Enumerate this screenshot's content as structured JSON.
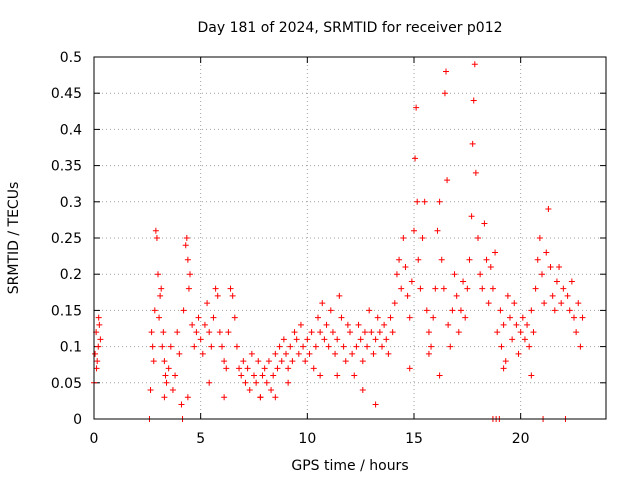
{
  "chart_data": {
    "type": "scatter",
    "title": "Day 181 of 2024, SRMTID for receiver p012",
    "xlabel": "GPS time / hours",
    "ylabel": "SRMTID / TECUs",
    "xlim": [
      0,
      24
    ],
    "ylim": [
      0,
      0.5
    ],
    "x_ticks": [
      0,
      5,
      10,
      15,
      20
    ],
    "x_tick_labels": [
      "0",
      "5",
      "10",
      "15",
      "20"
    ],
    "y_ticks": [
      0,
      0.05,
      0.1,
      0.15,
      0.2,
      0.25,
      0.3,
      0.35,
      0.4,
      0.45,
      0.5
    ],
    "y_tick_labels": [
      "0",
      "0.05",
      "0.1",
      "0.15",
      "0.2",
      "0.25",
      "0.3",
      "0.35",
      "0.4",
      "0.45",
      "0.5"
    ],
    "grid": true,
    "marker": "+",
    "marker_color": "#ff0000",
    "series": [
      {
        "name": "SRMTID",
        "points": [
          [
            0.0,
            0.05
          ],
          [
            0.05,
            0.09
          ],
          [
            0.1,
            0.12
          ],
          [
            0.15,
            0.08
          ],
          [
            0.2,
            0.1
          ],
          [
            0.25,
            0.13
          ],
          [
            0.3,
            0.11
          ],
          [
            0.12,
            0.07
          ],
          [
            0.22,
            0.14
          ],
          [
            2.6,
            0.0
          ],
          [
            2.65,
            0.04
          ],
          [
            2.7,
            0.12
          ],
          [
            2.75,
            0.1
          ],
          [
            2.8,
            0.08
          ],
          [
            2.85,
            0.15
          ],
          [
            2.9,
            0.26
          ],
          [
            2.95,
            0.25
          ],
          [
            3.0,
            0.2
          ],
          [
            3.05,
            0.14
          ],
          [
            3.1,
            0.17
          ],
          [
            3.15,
            0.18
          ],
          [
            3.2,
            0.1
          ],
          [
            3.25,
            0.12
          ],
          [
            3.3,
            0.08
          ],
          [
            3.35,
            0.06
          ],
          [
            3.4,
            0.05
          ],
          [
            3.5,
            0.07
          ],
          [
            3.6,
            0.1
          ],
          [
            3.7,
            0.04
          ],
          [
            3.8,
            0.06
          ],
          [
            3.9,
            0.12
          ],
          [
            4.0,
            0.09
          ],
          [
            4.1,
            0.02
          ],
          [
            4.15,
            0.0
          ],
          [
            4.2,
            0.15
          ],
          [
            4.3,
            0.24
          ],
          [
            4.35,
            0.25
          ],
          [
            4.4,
            0.22
          ],
          [
            4.45,
            0.18
          ],
          [
            4.5,
            0.2
          ],
          [
            4.6,
            0.13
          ],
          [
            4.7,
            0.1
          ],
          [
            4.8,
            0.12
          ],
          [
            4.9,
            0.14
          ],
          [
            5.0,
            0.11
          ],
          [
            5.1,
            0.09
          ],
          [
            5.2,
            0.13
          ],
          [
            5.3,
            0.16
          ],
          [
            5.4,
            0.12
          ],
          [
            5.5,
            0.1
          ],
          [
            5.6,
            0.14
          ],
          [
            5.7,
            0.18
          ],
          [
            5.8,
            0.17
          ],
          [
            5.9,
            0.12
          ],
          [
            6.0,
            0.1
          ],
          [
            6.1,
            0.08
          ],
          [
            6.2,
            0.07
          ],
          [
            6.3,
            0.12
          ],
          [
            6.4,
            0.18
          ],
          [
            6.5,
            0.17
          ],
          [
            6.6,
            0.14
          ],
          [
            6.7,
            0.1
          ],
          [
            6.8,
            0.07
          ],
          [
            6.9,
            0.06
          ],
          [
            7.0,
            0.08
          ],
          [
            7.1,
            0.05
          ],
          [
            7.2,
            0.07
          ],
          [
            7.3,
            0.04
          ],
          [
            7.4,
            0.09
          ],
          [
            7.5,
            0.06
          ],
          [
            7.6,
            0.05
          ],
          [
            7.7,
            0.08
          ],
          [
            7.8,
            0.03
          ],
          [
            7.9,
            0.06
          ],
          [
            8.0,
            0.07
          ],
          [
            8.1,
            0.05
          ],
          [
            8.2,
            0.08
          ],
          [
            8.3,
            0.04
          ],
          [
            8.4,
            0.06
          ],
          [
            8.5,
            0.09
          ],
          [
            8.6,
            0.07
          ],
          [
            8.7,
            0.1
          ],
          [
            8.8,
            0.08
          ],
          [
            8.9,
            0.11
          ],
          [
            9.0,
            0.09
          ],
          [
            9.1,
            0.07
          ],
          [
            9.2,
            0.1
          ],
          [
            9.3,
            0.08
          ],
          [
            9.4,
            0.12
          ],
          [
            9.5,
            0.11
          ],
          [
            9.6,
            0.09
          ],
          [
            9.7,
            0.13
          ],
          [
            9.8,
            0.1
          ],
          [
            9.9,
            0.08
          ],
          [
            10.0,
            0.11
          ],
          [
            10.1,
            0.09
          ],
          [
            10.2,
            0.12
          ],
          [
            10.3,
            0.07
          ],
          [
            10.4,
            0.1
          ],
          [
            10.5,
            0.14
          ],
          [
            10.6,
            0.12
          ],
          [
            10.7,
            0.16
          ],
          [
            10.8,
            0.11
          ],
          [
            10.9,
            0.13
          ],
          [
            11.0,
            0.1
          ],
          [
            11.1,
            0.15
          ],
          [
            11.2,
            0.12
          ],
          [
            11.3,
            0.09
          ],
          [
            11.4,
            0.11
          ],
          [
            11.5,
            0.17
          ],
          [
            11.6,
            0.14
          ],
          [
            11.7,
            0.1
          ],
          [
            11.8,
            0.08
          ],
          [
            11.9,
            0.13
          ],
          [
            12.0,
            0.12
          ],
          [
            12.1,
            0.09
          ],
          [
            12.2,
            0.06
          ],
          [
            12.3,
            0.1
          ],
          [
            12.4,
            0.13
          ],
          [
            12.5,
            0.11
          ],
          [
            12.6,
            0.08
          ],
          [
            12.7,
            0.12
          ],
          [
            12.8,
            0.1
          ],
          [
            12.9,
            0.15
          ],
          [
            13.0,
            0.12
          ],
          [
            13.1,
            0.09
          ],
          [
            13.2,
            0.11
          ],
          [
            13.3,
            0.14
          ],
          [
            13.4,
            0.12
          ],
          [
            13.5,
            0.1
          ],
          [
            13.6,
            0.13
          ],
          [
            13.7,
            0.11
          ],
          [
            13.8,
            0.09
          ],
          [
            13.9,
            0.14
          ],
          [
            14.0,
            0.12
          ],
          [
            14.1,
            0.16
          ],
          [
            14.2,
            0.2
          ],
          [
            14.3,
            0.22
          ],
          [
            14.4,
            0.18
          ],
          [
            14.5,
            0.25
          ],
          [
            14.6,
            0.21
          ],
          [
            14.7,
            0.17
          ],
          [
            14.8,
            0.14
          ],
          [
            14.9,
            0.19
          ],
          [
            15.0,
            0.26
          ],
          [
            15.05,
            0.36
          ],
          [
            15.1,
            0.43
          ],
          [
            15.15,
            0.3
          ],
          [
            15.2,
            0.22
          ],
          [
            15.3,
            0.18
          ],
          [
            15.4,
            0.25
          ],
          [
            15.5,
            0.3
          ],
          [
            15.6,
            0.15
          ],
          [
            15.7,
            0.12
          ],
          [
            15.8,
            0.1
          ],
          [
            15.9,
            0.14
          ],
          [
            16.0,
            0.18
          ],
          [
            16.1,
            0.26
          ],
          [
            16.2,
            0.3
          ],
          [
            16.3,
            0.22
          ],
          [
            16.4,
            0.18
          ],
          [
            16.45,
            0.45
          ],
          [
            16.5,
            0.48
          ],
          [
            16.55,
            0.33
          ],
          [
            16.6,
            0.13
          ],
          [
            16.7,
            0.1
          ],
          [
            16.8,
            0.15
          ],
          [
            16.9,
            0.2
          ],
          [
            17.0,
            0.17
          ],
          [
            17.1,
            0.12
          ],
          [
            17.2,
            0.15
          ],
          [
            17.3,
            0.19
          ],
          [
            17.4,
            0.14
          ],
          [
            17.5,
            0.18
          ],
          [
            17.6,
            0.22
          ],
          [
            17.7,
            0.28
          ],
          [
            17.75,
            0.38
          ],
          [
            17.8,
            0.44
          ],
          [
            17.85,
            0.49
          ],
          [
            17.9,
            0.34
          ],
          [
            18.0,
            0.25
          ],
          [
            18.1,
            0.2
          ],
          [
            18.2,
            0.18
          ],
          [
            18.3,
            0.27
          ],
          [
            18.4,
            0.22
          ],
          [
            18.5,
            0.16
          ],
          [
            18.6,
            0.21
          ],
          [
            18.7,
            0.18
          ],
          [
            18.8,
            0.23
          ],
          [
            18.9,
            0.12
          ],
          [
            19.0,
            0.0
          ],
          [
            19.05,
            0.15
          ],
          [
            19.1,
            0.1
          ],
          [
            19.2,
            0.13
          ],
          [
            19.3,
            0.08
          ],
          [
            19.4,
            0.17
          ],
          [
            19.5,
            0.14
          ],
          [
            19.6,
            0.11
          ],
          [
            19.7,
            0.16
          ],
          [
            19.8,
            0.13
          ],
          [
            19.9,
            0.09
          ],
          [
            20.0,
            0.12
          ],
          [
            20.1,
            0.14
          ],
          [
            20.2,
            0.11
          ],
          [
            20.3,
            0.13
          ],
          [
            20.4,
            0.1
          ],
          [
            20.5,
            0.15
          ],
          [
            20.6,
            0.12
          ],
          [
            20.7,
            0.18
          ],
          [
            20.8,
            0.22
          ],
          [
            20.9,
            0.25
          ],
          [
            21.0,
            0.2
          ],
          [
            21.05,
            0.0
          ],
          [
            21.1,
            0.16
          ],
          [
            21.2,
            0.23
          ],
          [
            21.3,
            0.29
          ],
          [
            21.4,
            0.21
          ],
          [
            21.5,
            0.17
          ],
          [
            21.6,
            0.15
          ],
          [
            21.7,
            0.19
          ],
          [
            21.8,
            0.21
          ],
          [
            21.9,
            0.16
          ],
          [
            22.0,
            0.18
          ],
          [
            22.1,
            0.0
          ],
          [
            22.2,
            0.17
          ],
          [
            22.3,
            0.15
          ],
          [
            22.4,
            0.19
          ],
          [
            22.5,
            0.14
          ],
          [
            22.6,
            0.12
          ],
          [
            22.7,
            0.16
          ],
          [
            22.8,
            0.1
          ],
          [
            22.9,
            0.14
          ],
          [
            8.5,
            0.03
          ],
          [
            9.1,
            0.05
          ],
          [
            12.6,
            0.04
          ],
          [
            13.2,
            0.02
          ],
          [
            14.8,
            0.07
          ],
          [
            15.7,
            0.09
          ],
          [
            16.2,
            0.06
          ],
          [
            18.7,
            0.0
          ],
          [
            18.85,
            0.0
          ],
          [
            19.2,
            0.07
          ],
          [
            20.5,
            0.06
          ],
          [
            6.1,
            0.03
          ],
          [
            4.4,
            0.03
          ],
          [
            3.3,
            0.03
          ],
          [
            5.4,
            0.05
          ],
          [
            11.4,
            0.06
          ],
          [
            10.6,
            0.06
          ],
          [
            7.8,
            0.03
          ]
        ]
      }
    ]
  }
}
